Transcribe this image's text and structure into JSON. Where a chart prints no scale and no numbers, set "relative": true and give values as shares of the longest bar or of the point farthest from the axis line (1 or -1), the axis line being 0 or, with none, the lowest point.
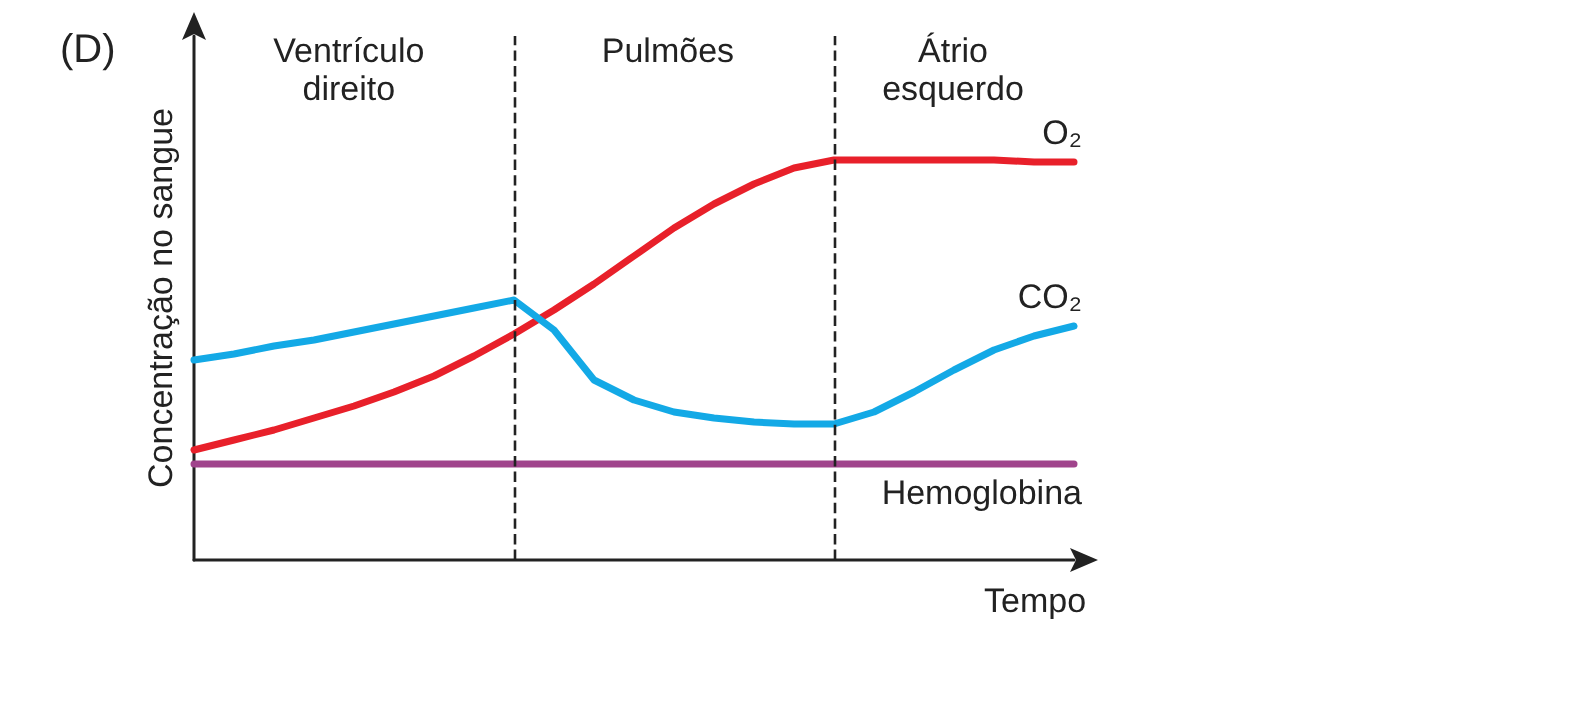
{
  "chart_data": {
    "type": "line",
    "title": "(D)",
    "xlabel": "Tempo",
    "ylabel": "Concentração no sangue",
    "relative": true,
    "grid": false,
    "legend": false,
    "marker": "none",
    "line_style": "solid",
    "categories": [
      null,
      null,
      null,
      null,
      null,
      null,
      null,
      null,
      null,
      null,
      null,
      null,
      null,
      null,
      null,
      null,
      null,
      null,
      null,
      null,
      null,
      null,
      null
    ],
    "annotations": [
      "Ventrículo\ndireito",
      "Pulmões",
      "Átrio\nesquerdo"
    ],
    "series": [
      {
        "name": "O₂",
        "color": "#e8202a",
        "values": [
          0.275,
          0.3,
          0.325,
          0.355,
          0.385,
          0.42,
          0.46,
          0.51,
          0.565,
          0.625,
          0.69,
          0.76,
          0.83,
          0.89,
          0.94,
          0.98,
          1.0,
          1.0,
          1.0,
          1.0,
          1.0,
          0.995,
          0.995
        ]
      },
      {
        "name": "CO₂",
        "color": "#13a9e6",
        "values": [
          0.5,
          0.515,
          0.535,
          0.55,
          0.57,
          0.59,
          0.61,
          0.63,
          0.65,
          0.575,
          0.45,
          0.4,
          0.37,
          0.355,
          0.345,
          0.34,
          0.34,
          0.37,
          0.42,
          0.475,
          0.525,
          0.56,
          0.585
        ]
      },
      {
        "name": "Hemoglobina",
        "color": "#a0448c",
        "values": [
          0.24,
          0.24,
          0.24,
          0.24,
          0.24,
          0.24,
          0.24,
          0.24,
          0.24,
          0.24,
          0.24,
          0.24,
          0.24,
          0.24,
          0.24,
          0.24,
          0.24,
          0.24,
          0.24,
          0.24,
          0.24,
          0.24,
          0.24
        ]
      }
    ]
  }
}
